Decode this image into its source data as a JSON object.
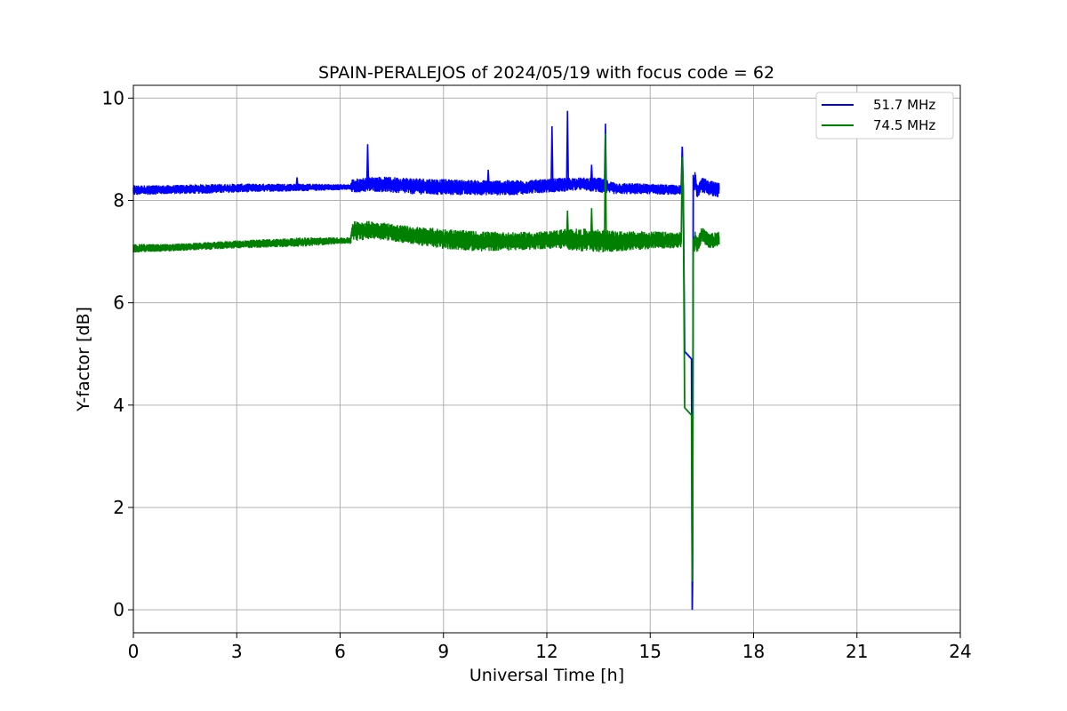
{
  "chart_data": {
    "type": "line",
    "title": "SPAIN-PERALEJOS of 2024/05/19 with focus code = 62",
    "xlabel": "Universal Time [h]",
    "ylabel": "Y-factor [dB]",
    "xlim": [
      0,
      24
    ],
    "ylim": [
      -0.45,
      10.25
    ],
    "xticks": [
      0,
      3,
      6,
      9,
      12,
      15,
      18,
      21,
      24
    ],
    "yticks": [
      0,
      2,
      4,
      6,
      8,
      10
    ],
    "grid": true,
    "legend_position": "top-right",
    "series": [
      {
        "name": "51.7 MHz",
        "color": "#0000ff",
        "band": {
          "x": [
            0.0,
            1.0,
            2.0,
            3.0,
            4.0,
            5.0,
            6.0,
            6.3,
            6.35,
            7.0,
            8.0,
            9.0,
            10.0,
            11.0,
            12.0,
            12.5,
            13.0,
            13.5,
            14.0,
            15.0,
            15.9
          ],
          "low": [
            8.1,
            8.12,
            8.13,
            8.15,
            8.17,
            8.18,
            8.2,
            8.2,
            8.15,
            8.17,
            8.12,
            8.1,
            8.1,
            8.1,
            8.15,
            8.17,
            8.2,
            8.15,
            8.12,
            8.12,
            8.1
          ],
          "high": [
            8.3,
            8.3,
            8.32,
            8.33,
            8.33,
            8.33,
            8.32,
            8.32,
            8.42,
            8.47,
            8.45,
            8.42,
            8.4,
            8.4,
            8.42,
            8.45,
            8.45,
            8.45,
            8.35,
            8.33,
            8.3
          ]
        },
        "spikes": [
          {
            "x": 4.75,
            "y": 8.45
          },
          {
            "x": 6.8,
            "y": 9.1
          },
          {
            "x": 10.3,
            "y": 8.6
          },
          {
            "x": 12.15,
            "y": 9.45
          },
          {
            "x": 12.6,
            "y": 9.75
          },
          {
            "x": 13.3,
            "y": 8.7
          },
          {
            "x": 13.7,
            "y": 9.5
          }
        ],
        "tail": {
          "x": [
            15.9,
            15.93,
            15.96,
            16.0,
            16.2,
            16.22,
            16.23,
            16.25,
            16.28,
            16.3,
            16.35,
            16.5,
            16.7,
            17.0
          ],
          "y": [
            8.2,
            9.05,
            8.2,
            5.05,
            4.9,
            0.0,
            0.6,
            8.5,
            8.2,
            8.45,
            8.2,
            8.3,
            8.25,
            8.2
          ]
        }
      },
      {
        "name": "74.5 MHz",
        "color": "#008000",
        "band": {
          "x": [
            0.0,
            1.0,
            2.0,
            3.0,
            4.0,
            5.0,
            6.0,
            6.3,
            6.35,
            7.0,
            8.0,
            9.0,
            10.0,
            11.0,
            12.0,
            12.5,
            13.0,
            13.5,
            14.0,
            15.0,
            15.9
          ],
          "low": [
            6.98,
            7.0,
            7.03,
            7.06,
            7.08,
            7.1,
            7.15,
            7.15,
            7.2,
            7.25,
            7.15,
            7.05,
            7.0,
            7.02,
            7.05,
            7.05,
            7.0,
            6.98,
            7.0,
            7.05,
            7.05
          ],
          "high": [
            7.15,
            7.15,
            7.18,
            7.22,
            7.25,
            7.28,
            7.28,
            7.28,
            7.6,
            7.6,
            7.5,
            7.45,
            7.4,
            7.38,
            7.4,
            7.45,
            7.45,
            7.45,
            7.4,
            7.4,
            7.38
          ]
        },
        "spikes": [
          {
            "x": 12.6,
            "y": 7.8
          },
          {
            "x": 13.3,
            "y": 7.85
          },
          {
            "x": 13.7,
            "y": 9.3
          }
        ],
        "tail": {
          "x": [
            15.9,
            15.93,
            15.96,
            16.0,
            16.2,
            16.22,
            16.23,
            16.25,
            16.28,
            16.3,
            16.35,
            16.5,
            16.7,
            17.0
          ],
          "y": [
            7.2,
            8.85,
            8.2,
            3.95,
            3.8,
            0.55,
            1.1,
            7.25,
            7.0,
            7.3,
            7.1,
            7.35,
            7.2,
            7.25
          ]
        }
      }
    ]
  }
}
